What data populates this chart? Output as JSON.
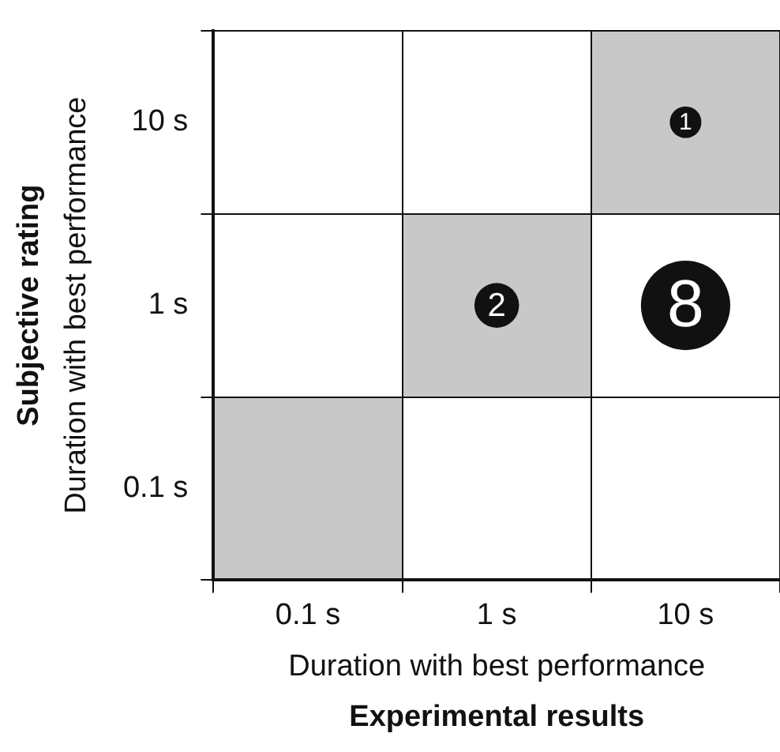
{
  "chart_data": {
    "type": "heatmap",
    "xlabel": "Duration with best performance\nExperimental results",
    "ylabel": "Subjective rating\nDuration with best performance",
    "categories": [
      "0.1 s",
      "1 s",
      "10 s"
    ],
    "y_categories": [
      "10 s",
      "1 s",
      "0.1 s"
    ],
    "cells": [
      [
        null,
        null,
        1
      ],
      [
        null,
        2,
        8
      ],
      [
        null,
        null,
        null
      ]
    ],
    "cell_labels": [
      [
        null,
        null,
        "1"
      ],
      [
        null,
        "2",
        "8"
      ],
      [
        null,
        null,
        null
      ]
    ],
    "grid": true
  }
}
